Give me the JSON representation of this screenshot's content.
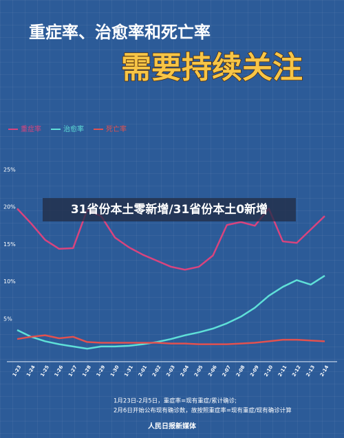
{
  "chart_data": {
    "type": "line",
    "title": "重症率、治愈率和死亡率",
    "subtitle": "需要持续关注",
    "categories": [
      "1-23",
      "1-24",
      "1-25",
      "1-26",
      "1-27",
      "1-28",
      "1-29",
      "1-30",
      "1-31",
      "2-01",
      "2-02",
      "2-03",
      "2-04",
      "2-05",
      "2-06",
      "2-07",
      "2-08",
      "2-09",
      "2-10",
      "2-11",
      "2-12",
      "2-13",
      "2-14"
    ],
    "series": [
      {
        "name": "重症率",
        "color": "#d9447e",
        "values": [
          19.8,
          17.8,
          15.6,
          14.4,
          14.5,
          19.6,
          18.8,
          15.9,
          14.6,
          13.6,
          12.8,
          12.0,
          11.6,
          12.0,
          13.5,
          17.6,
          18.0,
          17.5,
          19.8,
          15.4,
          15.2,
          17.0,
          18.8
        ]
      },
      {
        "name": "治愈率",
        "color": "#5fe0d8",
        "values": [
          3.5,
          2.6,
          2.0,
          1.6,
          1.3,
          1.0,
          1.3,
          1.3,
          1.4,
          1.6,
          1.9,
          2.3,
          2.8,
          3.2,
          3.7,
          4.4,
          5.3,
          6.5,
          8.1,
          9.3,
          10.2,
          9.6,
          10.8
        ]
      },
      {
        "name": "死亡率",
        "color": "#e2514f",
        "values": [
          2.3,
          2.6,
          2.8,
          2.4,
          2.6,
          1.9,
          1.8,
          1.8,
          1.8,
          1.8,
          1.8,
          1.7,
          1.7,
          1.6,
          1.6,
          1.6,
          1.7,
          1.8,
          2.0,
          2.2,
          2.2,
          2.1,
          2.0
        ]
      }
    ],
    "ylim": [
      0,
      25
    ],
    "yticks": [
      {
        "value": 5,
        "label": "5%"
      },
      {
        "value": 10,
        "label": "10%"
      },
      {
        "value": 15,
        "label": "15%"
      },
      {
        "value": 20,
        "label": "20%"
      },
      {
        "value": 25,
        "label": "25%"
      }
    ],
    "grid": false,
    "annotations": [
      "31省份本土零新增/31省份本土0新增",
      "1月23日-2月5日，重症率=现有重症/累计确诊;",
      "2月6日开始公布现有确诊数，故按照重症率=现有重症/现有确诊计算",
      "人民日报新媒体"
    ]
  }
}
